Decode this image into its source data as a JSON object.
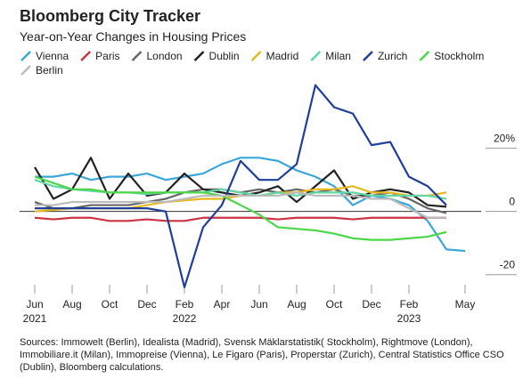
{
  "chart_data": {
    "type": "line",
    "title": "Bloomberg City Tracker",
    "subtitle": "Year-on-Year Changes in Housing Prices",
    "categories": [
      "Jun 2021",
      null,
      "Aug",
      null,
      "Oct",
      null,
      "Dec",
      null,
      "Feb 2022",
      null,
      "Apr",
      null,
      "Jun",
      null,
      "Aug",
      null,
      "Oct",
      null,
      "Dec",
      null,
      "Feb 2023",
      null,
      null,
      "May"
    ],
    "ylim": [
      -26,
      43
    ],
    "yticks": [
      {
        "value": 20,
        "label": "20%"
      },
      0,
      -20
    ],
    "series": [
      {
        "name": "Vienna",
        "color": "#3aa6dc",
        "values": [
          11,
          11,
          12,
          10,
          11,
          11,
          12,
          10,
          11,
          12,
          15,
          17,
          17,
          16,
          13,
          11,
          8,
          2,
          5,
          4,
          2,
          -3,
          -12,
          -12.5
        ]
      },
      {
        "name": "Paris",
        "color": "#cc3344",
        "values": [
          -2,
          -2.5,
          -2,
          -2,
          -3,
          -3,
          -2.5,
          -3,
          -3,
          -2,
          -2,
          -2,
          -2,
          -2.5,
          -2,
          -2,
          -2,
          -2.5,
          -2,
          -2,
          -2,
          -2,
          -2,
          null
        ]
      },
      {
        "name": "London",
        "color": "#666666",
        "values": [
          3,
          1,
          1,
          2,
          2,
          2,
          3,
          4,
          6,
          7,
          7,
          6,
          7,
          6,
          7,
          6,
          7,
          5,
          5,
          6,
          4,
          1,
          -0.5,
          null
        ]
      },
      {
        "name": "Dublin",
        "color": "#222222",
        "values": [
          14,
          4,
          7,
          17,
          4,
          12,
          5,
          6,
          12,
          7,
          6,
          5,
          6,
          8,
          3,
          8,
          13,
          4,
          6,
          7,
          6,
          2,
          1.5,
          null
        ]
      },
      {
        "name": "Madrid",
        "color": "#e8b820",
        "values": [
          0,
          0.5,
          1,
          1,
          1,
          1,
          2,
          3,
          3.5,
          4,
          4,
          5,
          5,
          6,
          6,
          7,
          7,
          8,
          6,
          6,
          5,
          5,
          6,
          null
        ]
      },
      {
        "name": "Milan",
        "color": "#62d7a5",
        "values": [
          10,
          8,
          7,
          6.5,
          6,
          6,
          5.5,
          6,
          6,
          6,
          7,
          6,
          5,
          6,
          5,
          6,
          6,
          6,
          5,
          5,
          5,
          5,
          4,
          null
        ]
      },
      {
        "name": "Zurich",
        "color": "#1f3f99",
        "values": [
          1,
          1,
          1,
          1,
          1,
          1,
          1,
          0,
          -24,
          -5,
          2,
          16,
          10,
          10,
          15,
          40,
          33,
          31,
          21,
          22,
          11,
          8,
          2,
          null
        ]
      },
      {
        "name": "Stockholm",
        "color": "#4cd64a",
        "values": [
          11,
          9,
          7,
          7,
          6,
          6,
          6,
          6,
          6,
          6,
          5,
          2,
          -1,
          -5,
          -5.5,
          -6,
          -7,
          -8.5,
          -9,
          -9,
          -8.5,
          -8,
          -6.5,
          null
        ]
      },
      {
        "name": "Berlin",
        "color": "#bbbbbb",
        "values": [
          2,
          2,
          3,
          3,
          3,
          3,
          3,
          3,
          4,
          5,
          5,
          5,
          5,
          5,
          6,
          5,
          5,
          5,
          4,
          4,
          1,
          -2,
          -2,
          null
        ]
      }
    ],
    "source": "Sources: Immowelt (Berlin), Idealista (Madrid), Svensk Mäklarstatistik( Stockholm), Rightmove (London), Immobiliare.it (Milan), Immopreise (Vienna), Le Figaro (Paris), Properstar (Zurich), Central Statistics Office CSO (Dublin), Bloomberg calculations."
  }
}
